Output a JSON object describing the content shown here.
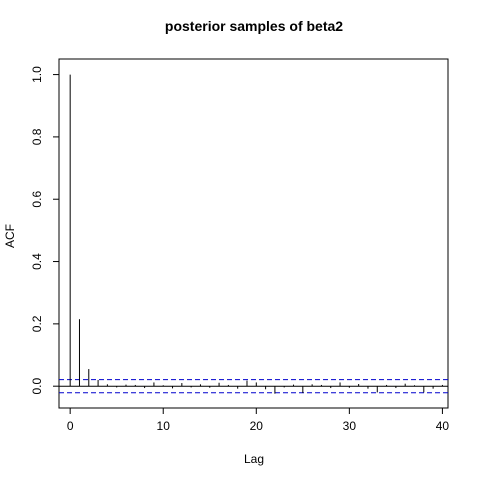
{
  "chart_data": {
    "type": "bar",
    "title": "posterior samples of beta2",
    "xlabel": "Lag",
    "ylabel": "ACF",
    "xlim": [
      -1.2,
      40.6
    ],
    "ylim": [
      -0.07,
      1.05
    ],
    "xticks": [
      0,
      10,
      20,
      30,
      40
    ],
    "yticks": [
      0.0,
      0.2,
      0.4,
      0.6,
      0.8,
      1.0
    ],
    "ytick_labels": [
      "0.0",
      "0.2",
      "0.4",
      "0.6",
      "0.8",
      "1.0"
    ],
    "confidence_bounds": [
      0.021,
      -0.021
    ],
    "lags": [
      0,
      1,
      2,
      3,
      4,
      5,
      6,
      7,
      8,
      9,
      10,
      11,
      12,
      13,
      14,
      15,
      16,
      17,
      18,
      19,
      20,
      21,
      22,
      23,
      24,
      25,
      26,
      27,
      28,
      29,
      30,
      31,
      32,
      33,
      34,
      35,
      36,
      37,
      38,
      39,
      40
    ],
    "acf": [
      1.0,
      0.215,
      0.055,
      0.02,
      0.006,
      -0.004,
      0.005,
      0.004,
      -0.006,
      0.012,
      0.003,
      -0.007,
      0.01,
      -0.004,
      0.006,
      -0.005,
      0.011,
      0.004,
      -0.008,
      0.018,
      0.012,
      -0.01,
      -0.024,
      -0.004,
      0.005,
      -0.022,
      0.006,
      0.004,
      -0.006,
      0.012,
      -0.005,
      0.007,
      -0.008,
      -0.02,
      0.004,
      -0.006,
      0.008,
      0.003,
      -0.02,
      -0.008,
      0.004
    ],
    "grid": false,
    "legend": "none",
    "colors": {
      "lines": "#000000",
      "bounds": "#0000cd"
    }
  }
}
